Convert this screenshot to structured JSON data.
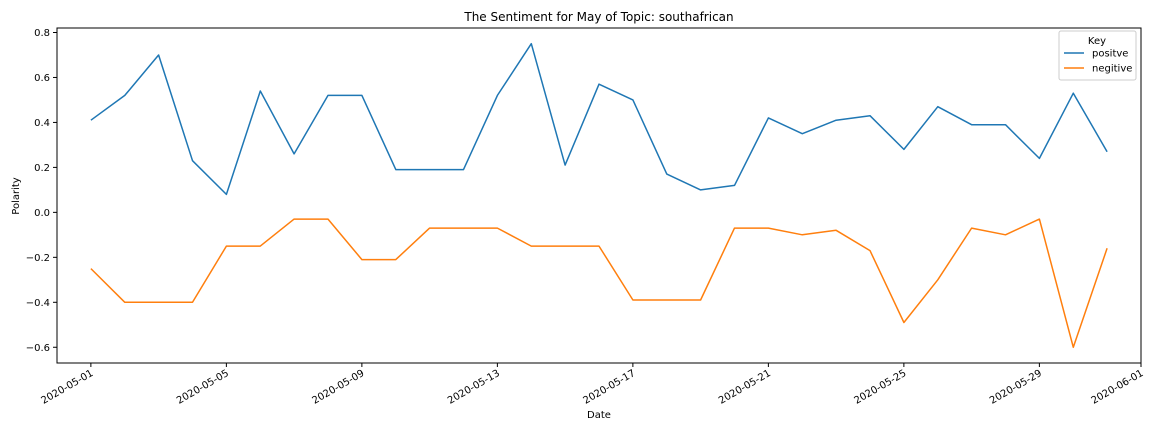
{
  "chart_data": {
    "type": "line",
    "title": "The Sentiment for May of Topic: southafrican",
    "xlabel": "Date",
    "ylabel": "Polarity",
    "x": [
      "2020-05-01",
      "2020-05-02",
      "2020-05-03",
      "2020-05-04",
      "2020-05-05",
      "2020-05-06",
      "2020-05-07",
      "2020-05-08",
      "2020-05-09",
      "2020-05-10",
      "2020-05-11",
      "2020-05-12",
      "2020-05-13",
      "2020-05-14",
      "2020-05-15",
      "2020-05-16",
      "2020-05-17",
      "2020-05-18",
      "2020-05-19",
      "2020-05-20",
      "2020-05-21",
      "2020-05-22",
      "2020-05-23",
      "2020-05-24",
      "2020-05-25",
      "2020-05-26",
      "2020-05-27",
      "2020-05-28",
      "2020-05-29",
      "2020-05-30",
      "2020-05-31"
    ],
    "series": [
      {
        "name": "positve",
        "color": "#1f77b4",
        "values": [
          0.41,
          0.52,
          0.7,
          0.23,
          0.08,
          0.54,
          0.26,
          0.52,
          0.52,
          0.19,
          0.19,
          0.19,
          0.52,
          0.75,
          0.21,
          0.57,
          0.5,
          0.17,
          0.1,
          0.12,
          0.42,
          0.35,
          0.41,
          0.43,
          0.28,
          0.47,
          0.39,
          0.39,
          0.24,
          0.53,
          0.27
        ]
      },
      {
        "name": "negitive",
        "color": "#ff7f0e",
        "values": [
          -0.25,
          -0.4,
          -0.4,
          -0.4,
          -0.15,
          -0.15,
          -0.03,
          -0.03,
          -0.21,
          -0.21,
          -0.07,
          -0.07,
          -0.07,
          -0.15,
          -0.15,
          -0.15,
          -0.39,
          -0.39,
          -0.39,
          -0.07,
          -0.07,
          -0.1,
          -0.08,
          -0.17,
          -0.49,
          -0.3,
          -0.07,
          -0.1,
          -0.03,
          -0.6,
          -0.16
        ]
      }
    ],
    "xlim": [
      "2020-04-30",
      "2020-06-01"
    ],
    "ylim": [
      -0.67,
      0.82
    ],
    "yticks": [
      -0.6,
      -0.4,
      -0.2,
      0.0,
      0.2,
      0.4,
      0.6,
      0.8
    ],
    "ytick_labels": [
      "−0.6",
      "−0.4",
      "−0.2",
      "0.0",
      "0.2",
      "0.4",
      "0.6",
      "0.8"
    ],
    "xticks": [
      "2020-05-01",
      "2020-05-05",
      "2020-05-09",
      "2020-05-13",
      "2020-05-17",
      "2020-05-21",
      "2020-05-25",
      "2020-05-29",
      "2020-06-01"
    ],
    "legend": {
      "title": "Key",
      "placement": "top-right"
    },
    "grid": false
  }
}
